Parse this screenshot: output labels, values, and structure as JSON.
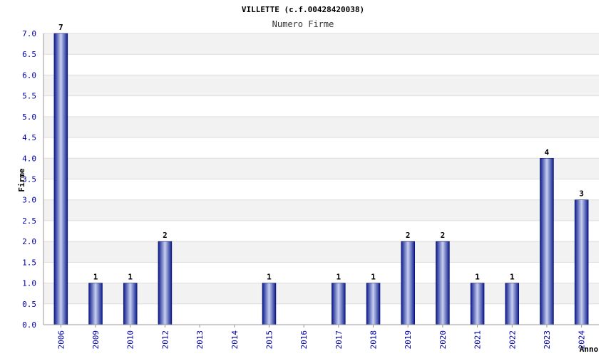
{
  "chart_data": {
    "type": "bar",
    "title": "VILLETTE (c.f.00428420038)",
    "subtitle": "Numero Firme",
    "xlabel": "Anno",
    "ylabel": "Firme",
    "categories": [
      "2006",
      "2009",
      "2010",
      "2012",
      "2013",
      "2014",
      "2015",
      "2016",
      "2017",
      "2018",
      "2019",
      "2020",
      "2021",
      "2022",
      "2023",
      "2024"
    ],
    "values": [
      7,
      1,
      1,
      2,
      0,
      0,
      1,
      0,
      1,
      1,
      2,
      2,
      1,
      1,
      4,
      3
    ],
    "data_labels": [
      "7",
      "1",
      "1",
      "2",
      "",
      "",
      "1",
      "",
      "1",
      "1",
      "2",
      "2",
      "1",
      "1",
      "4",
      "3"
    ],
    "yticks": [
      "0.0",
      "0.5",
      "1.0",
      "1.5",
      "2.0",
      "2.5",
      "3.0",
      "3.5",
      "4.0",
      "4.5",
      "5.0",
      "5.5",
      "6.0",
      "6.5",
      "7.0"
    ],
    "ylim": [
      0,
      7
    ],
    "grid": true,
    "colors": {
      "bar_dark": "#0a1a8c",
      "bar_light": "#c8d0f0",
      "stripe": "#f2f2f2",
      "grid": "#dddddd",
      "tick_text": "#0000aa"
    }
  }
}
